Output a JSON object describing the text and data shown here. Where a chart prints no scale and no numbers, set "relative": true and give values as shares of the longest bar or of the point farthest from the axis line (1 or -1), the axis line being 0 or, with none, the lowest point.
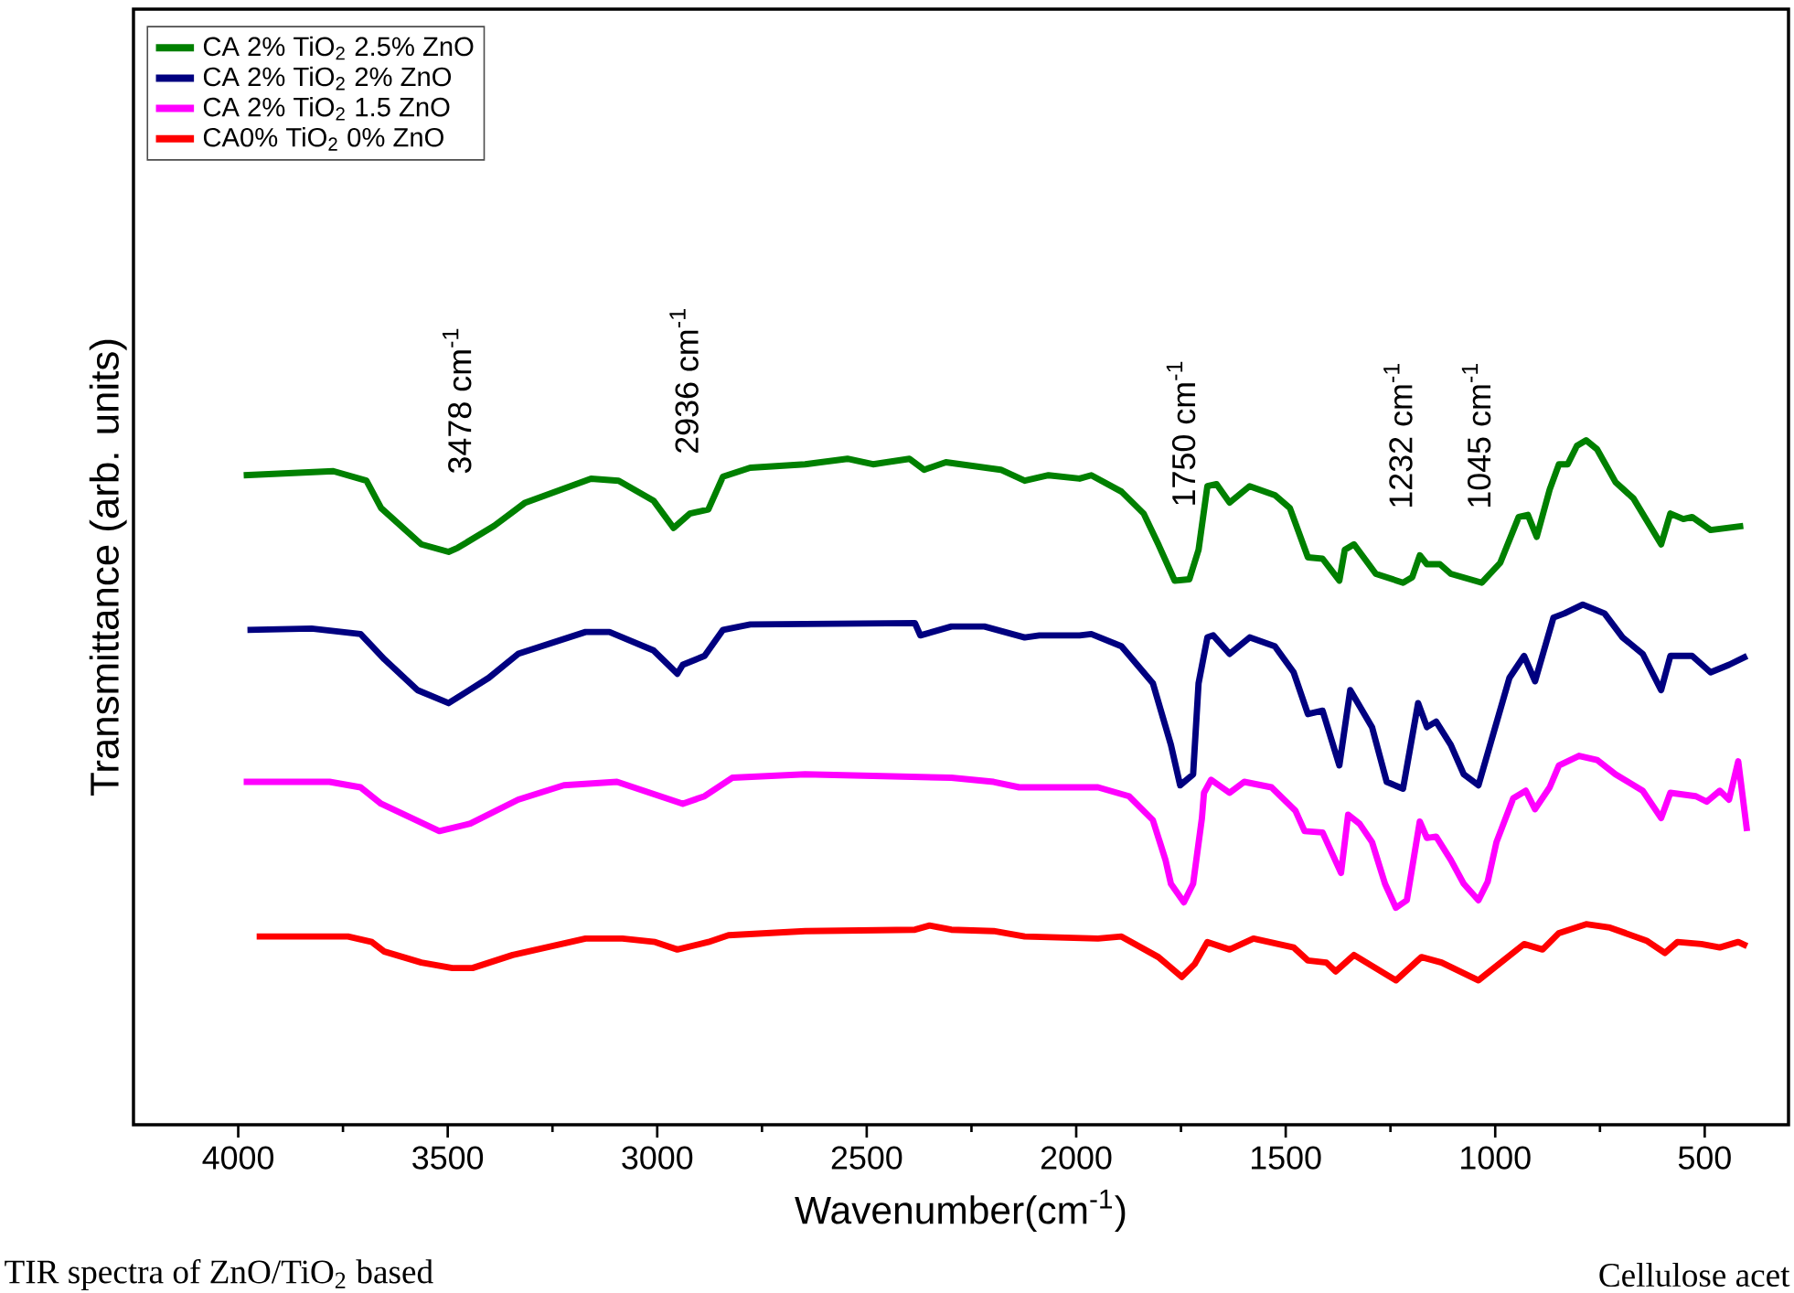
{
  "chart_data": {
    "type": "line",
    "relative": true,
    "xlabel": "Wavenumber(cm$^{-1}$)",
    "ylabel": "Transmittance (arb. units)",
    "xlim": [
      4250,
      300
    ],
    "xticks": [
      4000,
      3500,
      3000,
      2500,
      2000,
      1500,
      1000,
      500
    ],
    "legend": "top left",
    "series": [
      {
        "name": "CA 2% TiO$_{2}$ 2.5% ZnO",
        "color": "#008000",
        "x": [
          3987,
          3773,
          3694,
          3659,
          3563,
          3498,
          3476,
          3389,
          3315,
          3158,
          3092,
          3009,
          2961,
          2922,
          2878,
          2843,
          2778,
          2647,
          2546,
          2485,
          2398,
          2363,
          2311,
          2180,
          2123,
          2066,
          1992,
          1964,
          1892,
          1839,
          1804,
          1765,
          1730,
          1708,
          1687,
          1665,
          1634,
          1586,
          1526,
          1490,
          1447,
          1412,
          1372,
          1359,
          1337,
          1285,
          1220,
          1198,
          1180,
          1163,
          1132,
          1106,
          1032,
          988,
          944,
          922,
          901,
          870,
          848,
          827,
          805,
          783,
          757,
          713,
          670,
          604,
          582,
          551,
          530,
          486,
          408
        ],
        "values": [
          0.949,
          0.955,
          0.941,
          0.901,
          0.848,
          0.837,
          0.843,
          0.875,
          0.909,
          0.944,
          0.941,
          0.912,
          0.872,
          0.893,
          0.899,
          0.947,
          0.96,
          0.965,
          0.973,
          0.965,
          0.973,
          0.957,
          0.968,
          0.957,
          0.941,
          0.949,
          0.944,
          0.949,
          0.925,
          0.893,
          0.848,
          0.795,
          0.797,
          0.84,
          0.933,
          0.936,
          0.909,
          0.933,
          0.92,
          0.901,
          0.829,
          0.827,
          0.795,
          0.84,
          0.848,
          0.805,
          0.792,
          0.8,
          0.832,
          0.819,
          0.819,
          0.805,
          0.792,
          0.821,
          0.888,
          0.891,
          0.859,
          0.928,
          0.965,
          0.965,
          0.992,
          1,
          0.987,
          0.939,
          0.915,
          0.848,
          0.893,
          0.885,
          0.888,
          0.869,
          0.875
        ]
      },
      {
        "name": "CA 2% TiO$_{2}$ 2% ZnO",
        "color": "#000080",
        "x": [
          3978,
          3825,
          3708,
          3651,
          3572,
          3498,
          3402,
          3332,
          3171,
          3114,
          3009,
          2952,
          2939,
          2887,
          2843,
          2778,
          2385,
          2372,
          2298,
          2219,
          2123,
          2088,
          1992,
          1964,
          1892,
          1817,
          1774,
          1752,
          1721,
          1708,
          1687,
          1673,
          1634,
          1586,
          1526,
          1481,
          1447,
          1412,
          1372,
          1346,
          1294,
          1259,
          1220,
          1184,
          1163,
          1141,
          1106,
          1075,
          1040,
          966,
          931,
          905,
          861,
          835,
          791,
          739,
          696,
          648,
          604,
          582,
          530,
          486,
          442,
          399
        ],
        "values": [
          0.723,
          0.725,
          0.717,
          0.68,
          0.635,
          0.616,
          0.653,
          0.688,
          0.72,
          0.72,
          0.693,
          0.659,
          0.672,
          0.685,
          0.723,
          0.731,
          0.733,
          0.715,
          0.728,
          0.728,
          0.712,
          0.715,
          0.715,
          0.717,
          0.699,
          0.645,
          0.555,
          0.496,
          0.512,
          0.645,
          0.712,
          0.715,
          0.688,
          0.712,
          0.699,
          0.661,
          0.6,
          0.605,
          0.525,
          0.635,
          0.581,
          0.501,
          0.491,
          0.616,
          0.581,
          0.589,
          0.555,
          0.512,
          0.496,
          0.653,
          0.685,
          0.648,
          0.741,
          0.747,
          0.76,
          0.747,
          0.712,
          0.688,
          0.635,
          0.685,
          0.685,
          0.661,
          0.672,
          0.685
        ]
      },
      {
        "name": "CA 2% TiO$_{2}$ 1.5 ZnO",
        "color": "#ff00ff",
        "x": [
          3987,
          3782,
          3708,
          3659,
          3520,
          3446,
          3332,
          3223,
          3096,
          2939,
          2887,
          2821,
          2647,
          2298,
          2197,
          2136,
          1948,
          1874,
          1817,
          1787,
          1774,
          1743,
          1721,
          1700,
          1695,
          1678,
          1634,
          1599,
          1534,
          1477,
          1455,
          1412,
          1368,
          1351,
          1324,
          1294,
          1263,
          1237,
          1211,
          1180,
          1163,
          1141,
          1106,
          1075,
          1040,
          1018,
          997,
          957,
          927,
          905,
          870,
          848,
          800,
          757,
          713,
          648,
          604,
          582,
          521,
          495,
          464,
          442,
          420,
          399
        ],
        "values": [
          0.501,
          0.501,
          0.493,
          0.469,
          0.429,
          0.44,
          0.475,
          0.496,
          0.501,
          0.469,
          0.48,
          0.507,
          0.512,
          0.507,
          0.501,
          0.493,
          0.493,
          0.48,
          0.445,
          0.387,
          0.352,
          0.325,
          0.352,
          0.448,
          0.485,
          0.504,
          0.485,
          0.501,
          0.493,
          0.459,
          0.429,
          0.427,
          0.368,
          0.453,
          0.44,
          0.413,
          0.352,
          0.317,
          0.328,
          0.443,
          0.419,
          0.421,
          0.387,
          0.352,
          0.328,
          0.355,
          0.413,
          0.477,
          0.488,
          0.461,
          0.493,
          0.525,
          0.539,
          0.533,
          0.512,
          0.488,
          0.448,
          0.485,
          0.48,
          0.472,
          0.488,
          0.475,
          0.531,
          0.429
        ]
      },
      {
        "name": "CA0% TiO$_{2}$ 0% ZnO",
        "color": "#ff0000",
        "x": [
          3956,
          3738,
          3681,
          3651,
          3563,
          3489,
          3441,
          3345,
          3171,
          3083,
          3005,
          2952,
          2878,
          2830,
          2647,
          2385,
          2350,
          2298,
          2197,
          2123,
          1948,
          1892,
          1804,
          1748,
          1717,
          1687,
          1634,
          1577,
          1481,
          1447,
          1403,
          1381,
          1337,
          1237,
          1176,
          1128,
          1040,
          931,
          887,
          848,
          783,
          726,
          639,
          595,
          565,
          508,
          464,
          420,
          399
        ],
        "values": [
          0.275,
          0.275,
          0.267,
          0.253,
          0.237,
          0.229,
          0.229,
          0.248,
          0.272,
          0.272,
          0.267,
          0.256,
          0.267,
          0.277,
          0.283,
          0.285,
          0.291,
          0.285,
          0.283,
          0.275,
          0.272,
          0.275,
          0.245,
          0.216,
          0.235,
          0.267,
          0.256,
          0.272,
          0.259,
          0.24,
          0.237,
          0.224,
          0.248,
          0.211,
          0.245,
          0.237,
          0.211,
          0.264,
          0.256,
          0.28,
          0.293,
          0.288,
          0.269,
          0.251,
          0.267,
          0.264,
          0.259,
          0.267,
          0.261
        ]
      }
    ],
    "annotations": [
      {
        "text": "3478 cm$^{-1}$",
        "x": 3478,
        "y": 0.843
      },
      {
        "text": "2936 cm$^{-1}$",
        "x": 2936,
        "y": 0.872
      },
      {
        "text": "1750 cm$^{-1}$",
        "x": 1750,
        "y": 0.795
      },
      {
        "text": "1232 cm$^{-1}$",
        "x": 1232,
        "y": 0.792
      },
      {
        "text": "1045 cm$^{-1}$",
        "x": 1045,
        "y": 0.792
      },
      "TIR spectra of ZnO/TiO$_{2}$ based",
      "Cellulose acet"
    ]
  }
}
